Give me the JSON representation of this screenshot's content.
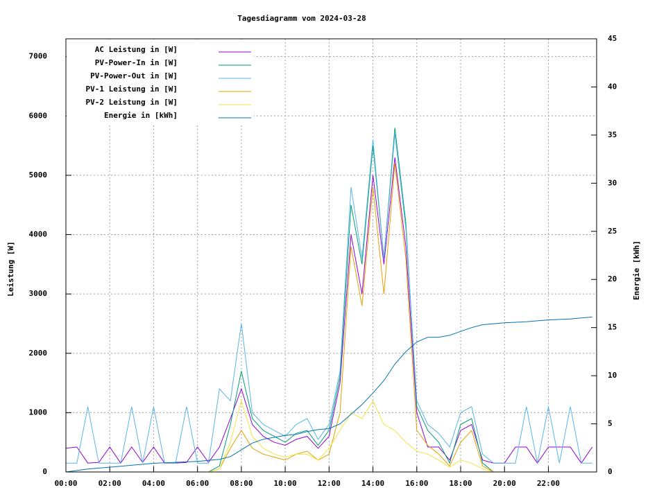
{
  "chart_data": {
    "type": "line",
    "title": "Tagesdiagramm vom 2024-03-28",
    "y_label": "Leistung [W]",
    "y2_label": "Energie [kWh]",
    "grid": true,
    "legend": "top-left",
    "xlim": [
      0,
      24.2
    ],
    "xticks": [
      {
        "value": 0,
        "label": "00:00"
      },
      {
        "value": 2,
        "label": "02:00"
      },
      {
        "value": 4,
        "label": "04:00"
      },
      {
        "value": 6,
        "label": "06:00"
      },
      {
        "value": 8,
        "label": "08:00"
      },
      {
        "value": 10,
        "label": "10:00"
      },
      {
        "value": 12,
        "label": "12:00"
      },
      {
        "value": 14,
        "label": "14:00"
      },
      {
        "value": 16,
        "label": "16:00"
      },
      {
        "value": 18,
        "label": "18:00"
      },
      {
        "value": 20,
        "label": "20:00"
      },
      {
        "value": 22,
        "label": "22:00"
      }
    ],
    "ylim": [
      0,
      7300
    ],
    "yticks": [
      0,
      1000,
      2000,
      3000,
      4000,
      5000,
      6000,
      7000
    ],
    "y2lim": [
      0,
      45
    ],
    "y2ticks": [
      0,
      5,
      10,
      15,
      20,
      25,
      30,
      35,
      40,
      45
    ],
    "x": [
      0,
      0.5,
      1,
      1.5,
      2,
      2.5,
      3,
      3.5,
      4,
      4.5,
      5,
      5.5,
      6,
      6.5,
      7,
      7.5,
      8,
      8.5,
      9,
      9.5,
      10,
      10.5,
      11,
      11.5,
      12,
      12.5,
      13,
      13.5,
      14,
      14.5,
      15,
      15.5,
      16,
      16.5,
      17,
      17.5,
      18,
      18.5,
      19,
      19.5,
      20,
      20.5,
      21,
      21.5,
      22,
      22.5,
      23,
      23.5,
      24
    ],
    "series": [
      {
        "name": "AC Leistung in [W]",
        "color": "#9400d3",
        "values": [
          400,
          420,
          150,
          160,
          420,
          150,
          420,
          160,
          420,
          150,
          150,
          160,
          420,
          160,
          420,
          900,
          1400,
          800,
          600,
          500,
          450,
          550,
          600,
          400,
          600,
          1500,
          4000,
          3000,
          5000,
          3500,
          5300,
          3800,
          1000,
          420,
          420,
          200,
          700,
          800,
          200,
          150,
          150,
          420,
          420,
          150,
          420,
          420,
          420,
          150,
          420
        ]
      },
      {
        "name": "PV-Power-In in [W]",
        "color": "#009e73",
        "values": [
          0,
          0,
          0,
          0,
          0,
          0,
          0,
          0,
          0,
          0,
          0,
          0,
          0,
          0,
          100,
          800,
          1700,
          900,
          700,
          600,
          500,
          650,
          700,
          450,
          700,
          1600,
          4500,
          3500,
          5500,
          3600,
          5800,
          4200,
          1100,
          700,
          500,
          150,
          800,
          900,
          150,
          0,
          0,
          0,
          0,
          0,
          0,
          0,
          0,
          0,
          0
        ]
      },
      {
        "name": "PV-Power-Out in [W]",
        "color": "#56b4e9",
        "values": [
          150,
          150,
          1100,
          150,
          150,
          150,
          1100,
          150,
          1100,
          150,
          150,
          1100,
          150,
          150,
          1400,
          1200,
          2500,
          1000,
          800,
          700,
          600,
          800,
          900,
          550,
          800,
          1700,
          4800,
          3600,
          5600,
          3600,
          5700,
          4100,
          1200,
          800,
          650,
          420,
          1000,
          1100,
          300,
          150,
          150,
          150,
          1100,
          150,
          1100,
          150,
          1100,
          150,
          150
        ]
      },
      {
        "name": "PV-1 Leistung in [W]",
        "color": "#e69f00",
        "values": [
          0,
          0,
          0,
          0,
          0,
          0,
          0,
          0,
          0,
          0,
          0,
          0,
          0,
          0,
          50,
          400,
          700,
          400,
          300,
          250,
          200,
          300,
          350,
          200,
          300,
          1000,
          3800,
          2800,
          4800,
          3000,
          5200,
          3600,
          700,
          450,
          300,
          100,
          500,
          700,
          100,
          0,
          0,
          0,
          0,
          0,
          0,
          0,
          0,
          0,
          0
        ]
      },
      {
        "name": "PV-2 Leistung in [W]",
        "color": "#f0e442",
        "values": [
          0,
          0,
          0,
          0,
          0,
          0,
          0,
          0,
          0,
          0,
          0,
          0,
          0,
          0,
          50,
          500,
          1200,
          600,
          400,
          300,
          250,
          300,
          300,
          200,
          400,
          700,
          1000,
          900,
          1200,
          800,
          700,
          500,
          350,
          300,
          200,
          80,
          200,
          150,
          50,
          0,
          0,
          0,
          0,
          0,
          0,
          0,
          0,
          0,
          0
        ]
      },
      {
        "name": "Energie in [kWh]",
        "color": "#0072b2",
        "axis": "y2",
        "values": [
          0,
          0.15,
          0.3,
          0.4,
          0.5,
          0.6,
          0.7,
          0.8,
          0.9,
          0.95,
          1.0,
          1.05,
          1.1,
          1.2,
          1.3,
          1.6,
          2.3,
          3.0,
          3.4,
          3.6,
          3.8,
          3.9,
          4.2,
          4.4,
          4.5,
          5.0,
          6.0,
          7.0,
          8.2,
          9.5,
          11.2,
          12.5,
          13.5,
          14.0,
          14.0,
          14.2,
          14.6,
          15.0,
          15.3,
          15.4,
          15.5,
          15.55,
          15.6,
          15.7,
          15.8,
          15.85,
          15.9,
          16.0,
          16.1
        ]
      }
    ]
  }
}
